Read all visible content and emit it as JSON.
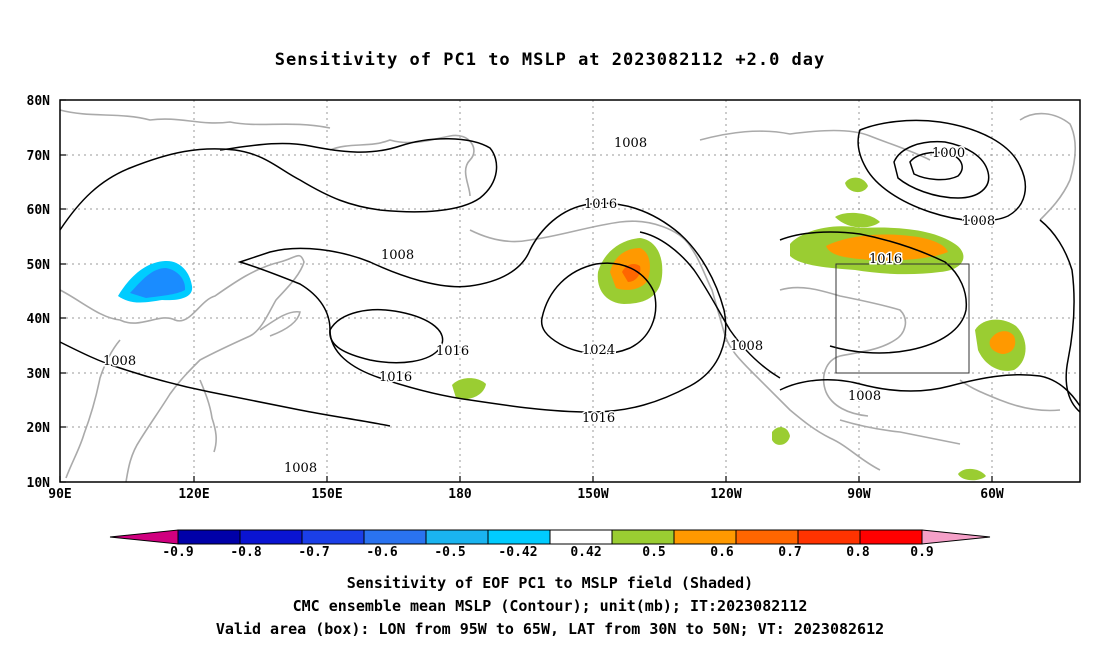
{
  "title": "Sensitivity of PC1 to MSLP at 2023082112 +2.0 day",
  "map": {
    "lat_labels": [
      "80N",
      "70N",
      "60N",
      "50N",
      "40N",
      "30N",
      "20N",
      "10N"
    ],
    "lon_labels": [
      "90E",
      "120E",
      "150E",
      "180",
      "150W",
      "120W",
      "90W",
      "60W"
    ],
    "contour_labels": [
      "1008",
      "1000",
      "1008",
      "1016",
      "1008",
      "1016",
      "1024",
      "1016",
      "1008",
      "1008",
      "1016",
      "1016",
      "1008",
      "1008"
    ]
  },
  "colorbar": {
    "labels": [
      "-0.9",
      "-0.8",
      "-0.7",
      "-0.6",
      "-0.5",
      "-0.42",
      "0.42",
      "0.5",
      "0.6",
      "0.7",
      "0.8",
      "0.9"
    ],
    "colors": [
      "#d0007f",
      "#0000a8",
      "#0a14d2",
      "#1b3fe8",
      "#2a73f0",
      "#1ab4f0",
      "#00ccff",
      "#ffffff",
      "#9acd32",
      "#ff9900",
      "#ff6600",
      "#ff3300",
      "#ff0000",
      "#f5a0c8"
    ]
  },
  "captions": {
    "line1": "Sensitivity of EOF PC1 to MSLP field (Shaded)",
    "line2": "CMC ensemble mean MSLP (Contour); unit(mb); IT:2023082112",
    "line3": "Valid area (box): LON from 95W to 65W, LAT from 30N to 50N; VT: 2023082612"
  }
}
